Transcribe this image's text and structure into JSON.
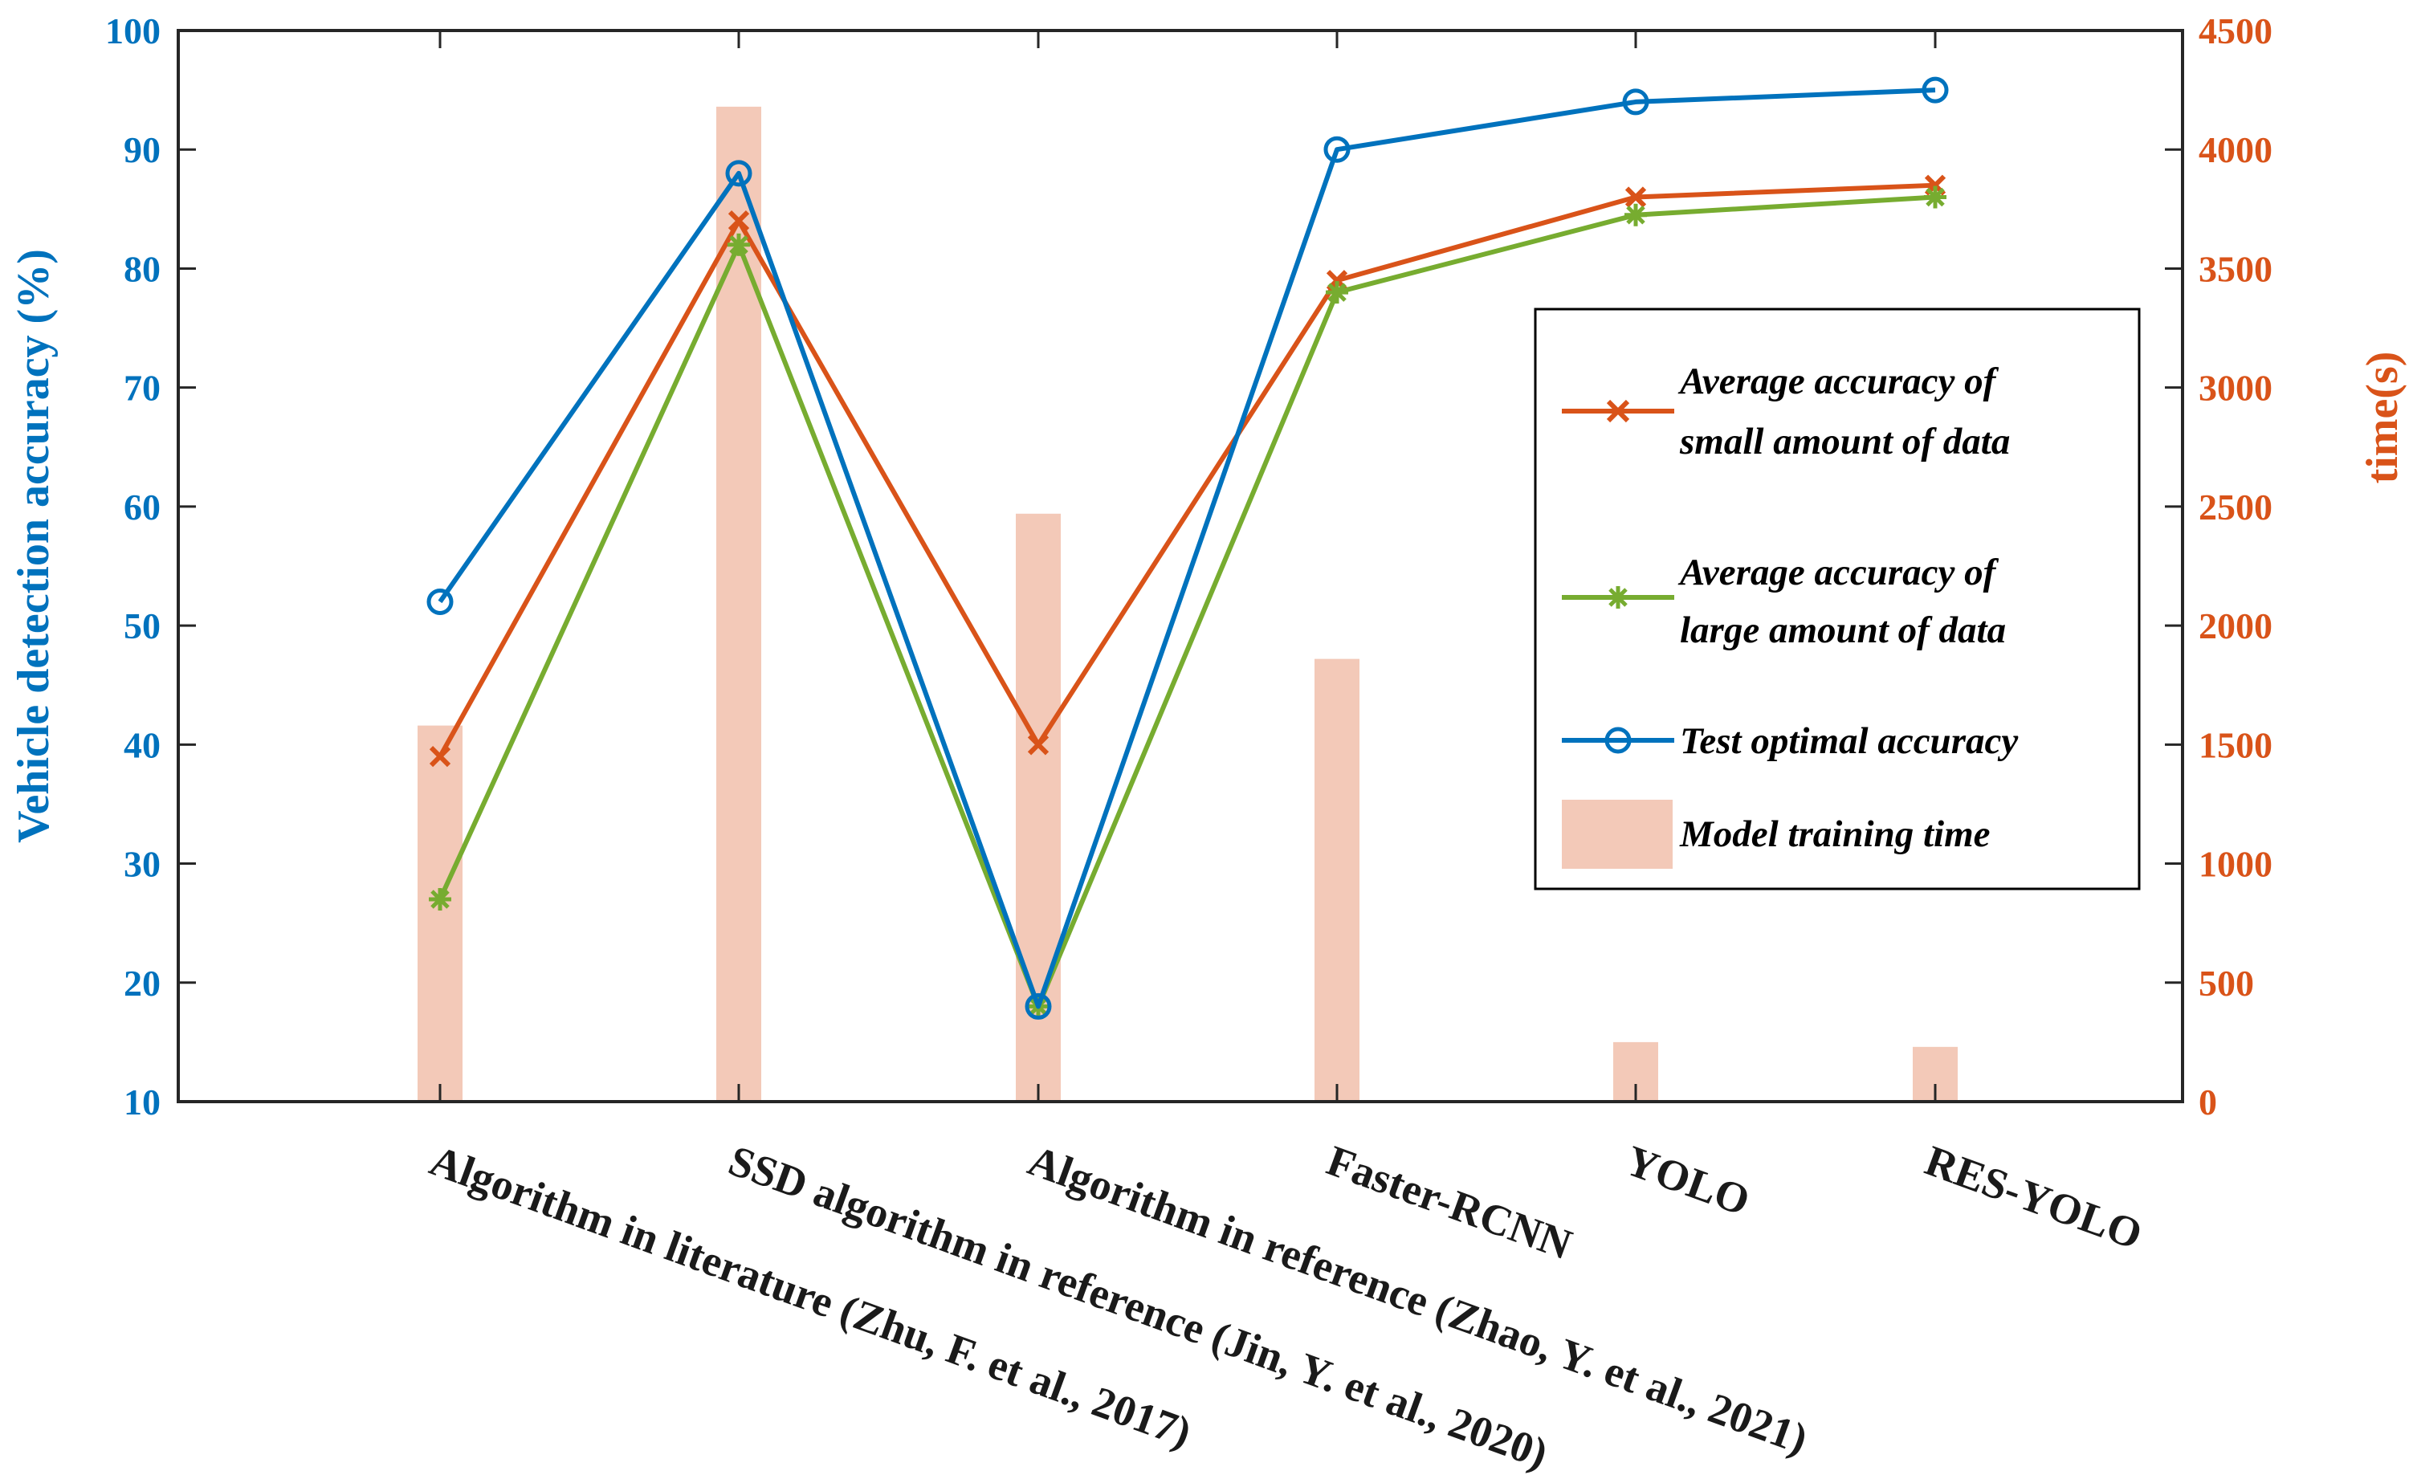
{
  "chart_data": {
    "type": "bar+line",
    "categories": [
      "Algorithm in literature (Zhu, F. et al., 2017)",
      "SSD algorithm in reference (Jin, Y. et al., 2020)",
      "Algorithm in reference (Zhao, Y. et al., 2021)",
      "Faster-RCNN",
      "YOLO",
      "RES-YOLO"
    ],
    "left_axis": {
      "label": "Vehicle detection accuracy (%)",
      "ylim": [
        10,
        100
      ],
      "ticks": [
        "10",
        "20",
        "30",
        "40",
        "50",
        "60",
        "70",
        "80",
        "90",
        "100"
      ],
      "color": "#0072BD"
    },
    "right_axis": {
      "label": "time(s)",
      "ylim": [
        0,
        4500
      ],
      "ticks": [
        "0",
        "500",
        "1000",
        "1500",
        "2000",
        "2500",
        "3000",
        "3500",
        "4000",
        "4500"
      ],
      "color": "#D95319"
    },
    "bars": {
      "name": "Model training time",
      "axis": "right",
      "color": "#F3C9B8",
      "values": [
        1580,
        4180,
        2470,
        1860,
        250,
        230
      ]
    },
    "series": [
      {
        "name": "Average accuracy of small amount of data",
        "axis": "left",
        "color": "#D95319",
        "marker": "x",
        "values": [
          39,
          84,
          40,
          79,
          86,
          87
        ]
      },
      {
        "name": "Average accuracy of large amount of data",
        "axis": "left",
        "color": "#77AC30",
        "marker": "asterisk",
        "values": [
          27,
          82,
          18,
          78,
          84.5,
          86
        ]
      },
      {
        "name": "Test optimal accuracy",
        "axis": "left",
        "color": "#0072BD",
        "marker": "circle",
        "values": [
          52,
          88,
          18,
          90,
          94,
          95
        ]
      }
    ],
    "legend": {
      "placement": "center-right",
      "entries": [
        {
          "line1": "Average accuracy of",
          "line2": "small amount of data"
        },
        {
          "line1": "Average accuracy of",
          "line2": "large amount of data"
        },
        {
          "line1": "Test optimal accuracy"
        },
        {
          "line1": "Model training time"
        }
      ]
    }
  }
}
